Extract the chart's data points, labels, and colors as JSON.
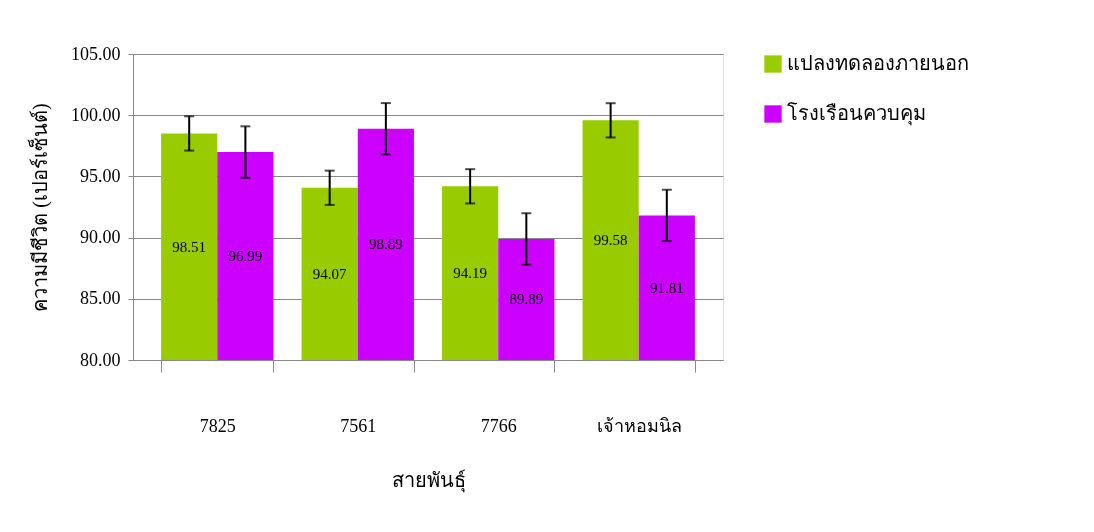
{
  "chart_data": {
    "type": "bar",
    "xlabel": "สายพันธุ์",
    "ylabel": "ความมีชีวิต (เปอร์เซ็นต์)",
    "categories": [
      "7825",
      "7561",
      "7766",
      "เจ้าหอมนิล"
    ],
    "series": [
      {
        "name": "แปลงทดลองภายนอก",
        "color": "#99cc00",
        "values": [
          98.51,
          94.07,
          94.19,
          99.58
        ],
        "errors": [
          1.4,
          1.4,
          1.4,
          1.4
        ]
      },
      {
        "name": "โรงเรือนควบคุม",
        "color": "#cc00ff",
        "values": [
          96.99,
          98.89,
          89.89,
          91.81
        ],
        "errors": [
          2.1,
          2.1,
          2.1,
          2.1
        ]
      }
    ],
    "ylim": [
      80,
      105
    ],
    "yticks": [
      {
        "value": 80,
        "label": "80.00"
      },
      {
        "value": 85,
        "label": "85.00"
      },
      {
        "value": 90,
        "label": "90.00"
      },
      {
        "value": 95,
        "label": "95.00"
      },
      {
        "value": 100,
        "label": "100.00"
      },
      {
        "value": 105,
        "label": "105.00"
      }
    ],
    "grid": "y",
    "legend": "right",
    "data_labels": true
  }
}
